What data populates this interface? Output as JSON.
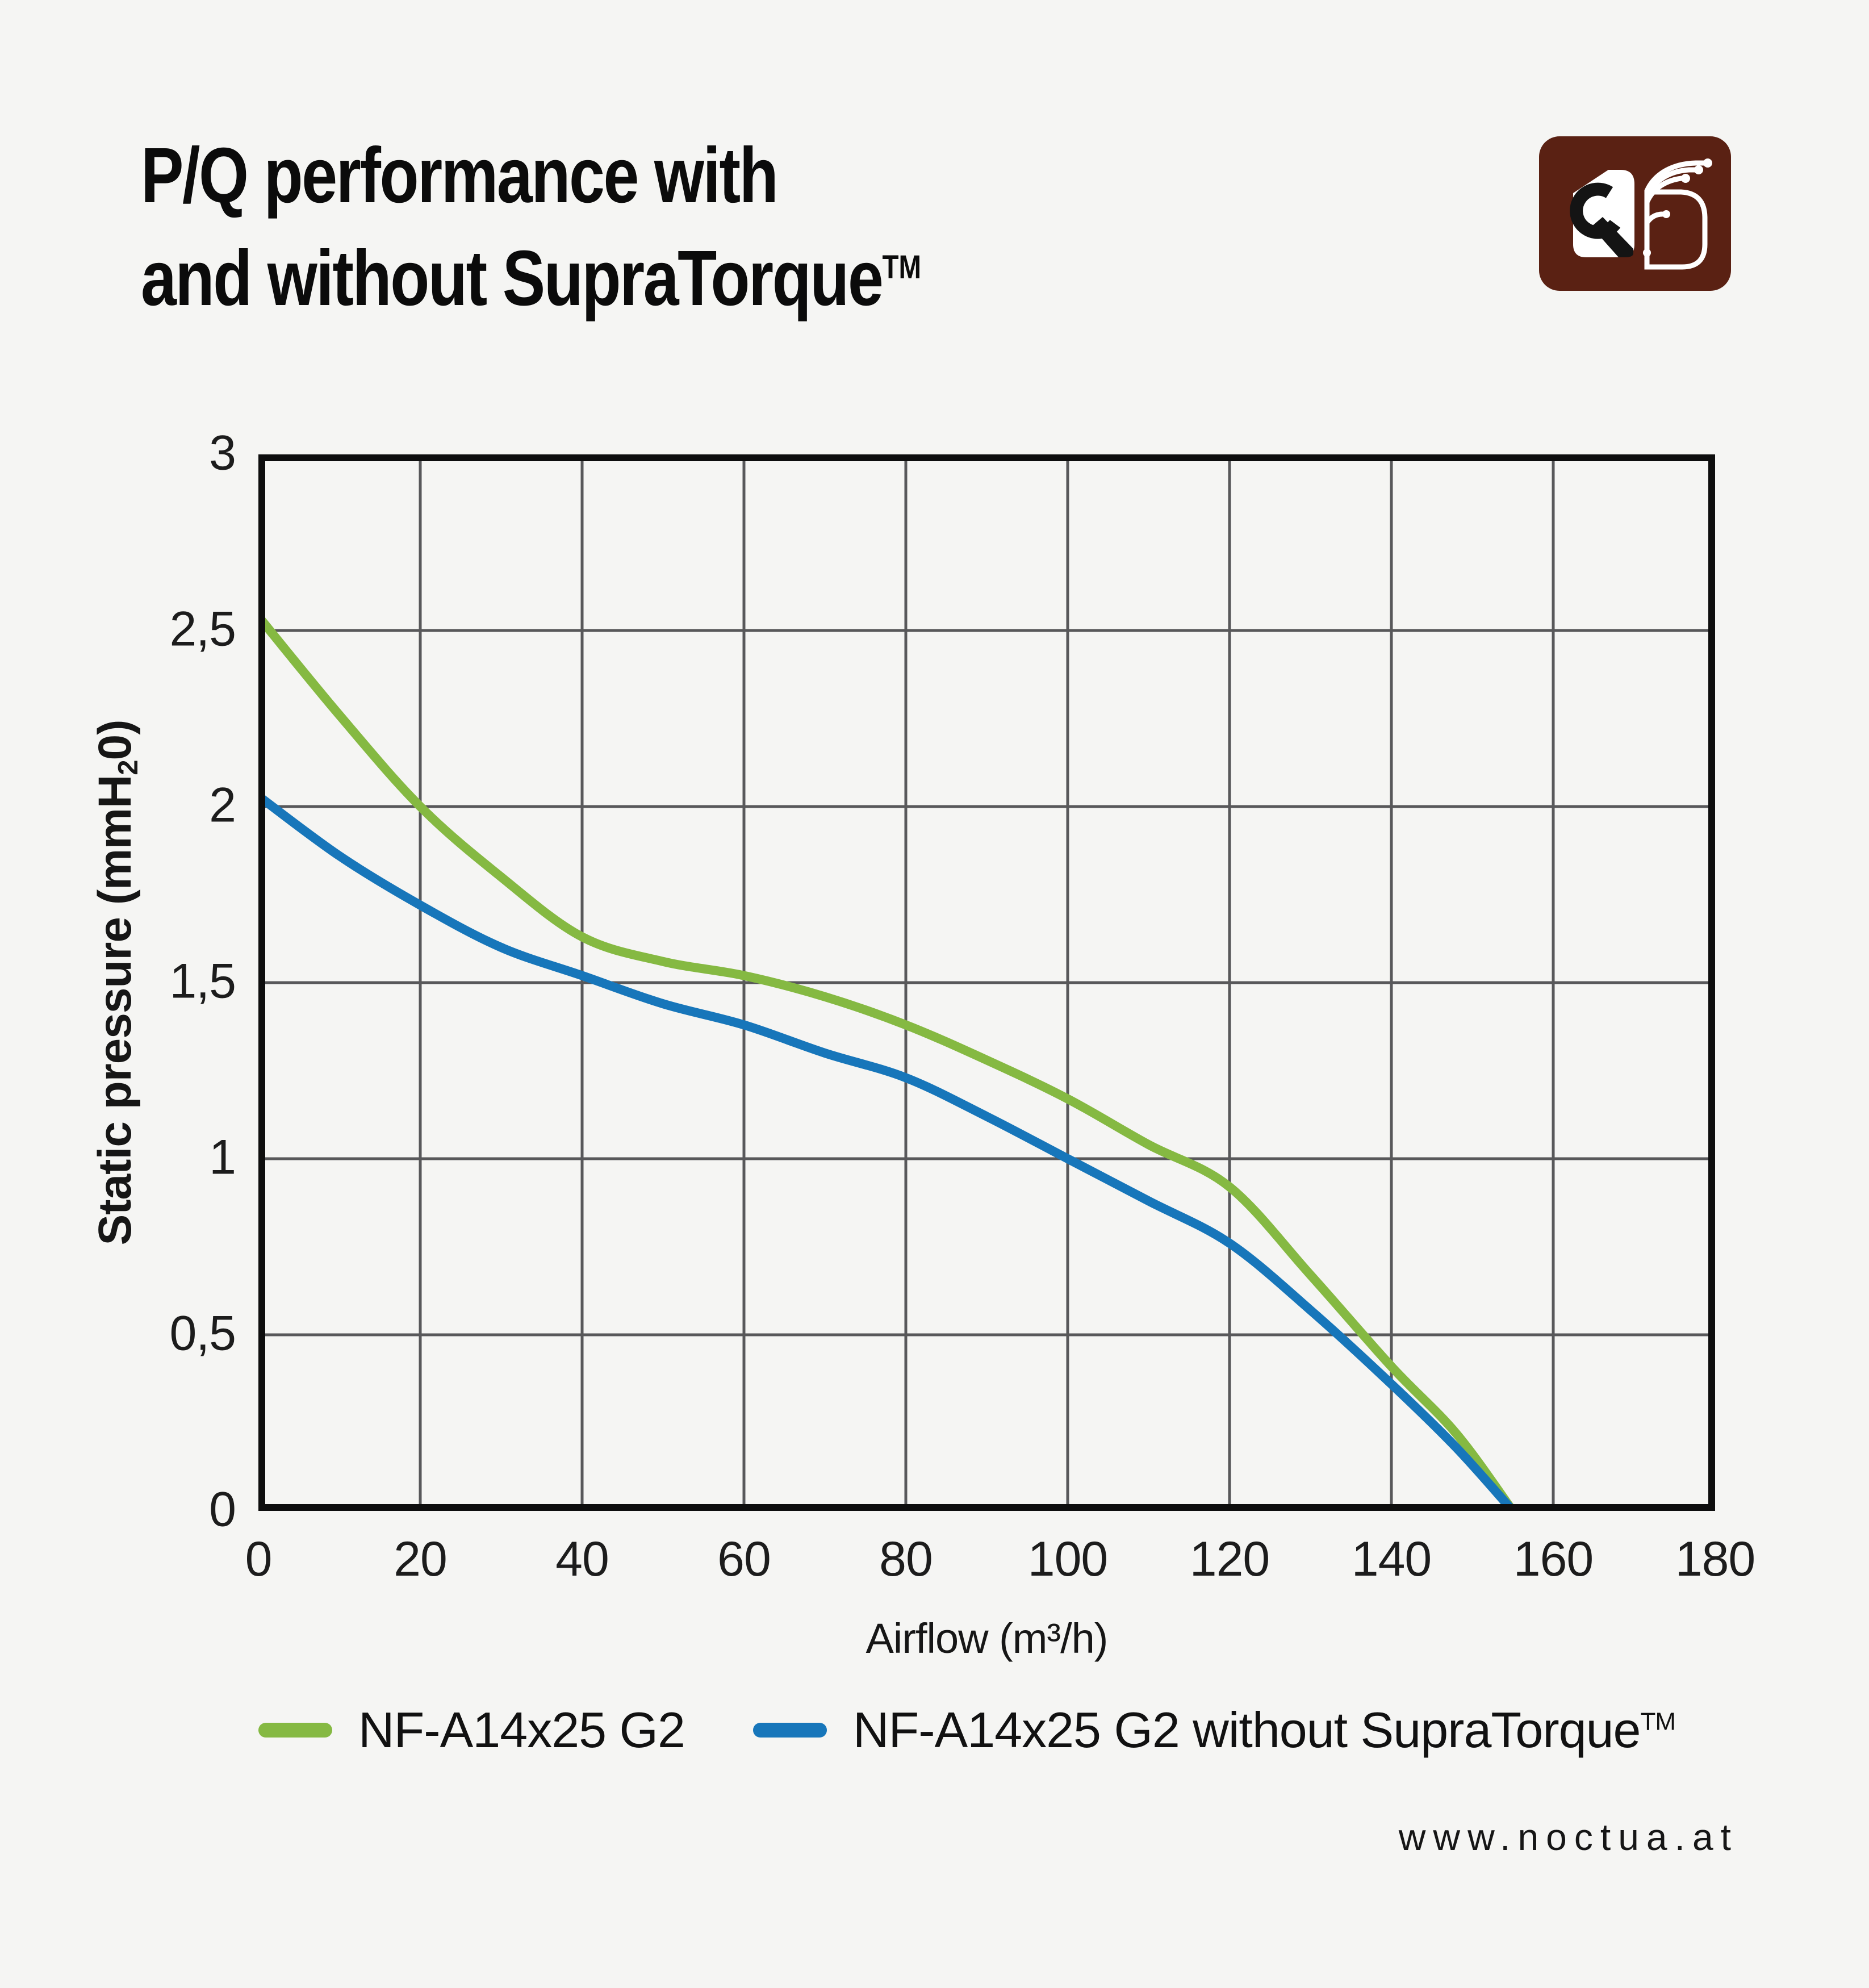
{
  "header": {
    "title_line1": "P/Q performance with",
    "title_line2": "and without SupraTorque",
    "title_tm": "TM"
  },
  "logo": {
    "name": "noctua-logo",
    "background_color": "#5a2113",
    "foreground_color": "#ffffff"
  },
  "y_axis": {
    "label_pre": "Static pressure (mmH",
    "label_sub": "2",
    "label_post": "0)"
  },
  "x_axis": {
    "label": "Airflow (m³/h)"
  },
  "legend": {
    "items": [
      {
        "label": "NF-A14x25 G2",
        "tm": ""
      },
      {
        "label": "NF-A14x25 G2 without SupraTorque",
        "tm": "TM"
      }
    ]
  },
  "footer": {
    "url": "www.noctua.at"
  },
  "chart_data": {
    "type": "line",
    "title": "P/Q performance with and without SupraTorque™",
    "xlabel": "Airflow (m³/h)",
    "ylabel": "Static pressure (mmH₂0)",
    "xlim": [
      0,
      180
    ],
    "ylim": [
      0,
      3
    ],
    "grid": true,
    "legend_position": "bottom",
    "grid_color": "#58585a",
    "border_color": "#0e0e0e",
    "x_tick_values": [
      0,
      20,
      40,
      60,
      80,
      100,
      120,
      140,
      160,
      180
    ],
    "x_tick_labels": [
      "0",
      "20",
      "40",
      "60",
      "80",
      "100",
      "120",
      "140",
      "160",
      "180"
    ],
    "y_tick_values": [
      0,
      0.5,
      1,
      1.5,
      2,
      2.5,
      3
    ],
    "y_tick_labels": [
      "0",
      "0,5",
      "1",
      "1,5",
      "2",
      "2,5",
      "3"
    ],
    "x": [
      0,
      10,
      20,
      30,
      40,
      50,
      60,
      70,
      80,
      90,
      100,
      110,
      120,
      130,
      140,
      148,
      155
    ],
    "series": [
      {
        "name": "NF-A14x25 G2",
        "color": "#85b942",
        "values": [
          2.54,
          2.26,
          2.0,
          1.8,
          1.63,
          1.56,
          1.52,
          1.46,
          1.38,
          1.28,
          1.17,
          1.04,
          0.92,
          0.67,
          0.41,
          0.22,
          0
        ]
      },
      {
        "name": "NF-A14x25 G2 without SupraTorque™",
        "color": "#1776ba",
        "values": [
          2.03,
          1.86,
          1.72,
          1.6,
          1.52,
          1.44,
          1.38,
          1.3,
          1.23,
          1.12,
          1.0,
          0.88,
          0.76,
          0.57,
          0.36,
          0.18,
          0
        ]
      }
    ]
  }
}
